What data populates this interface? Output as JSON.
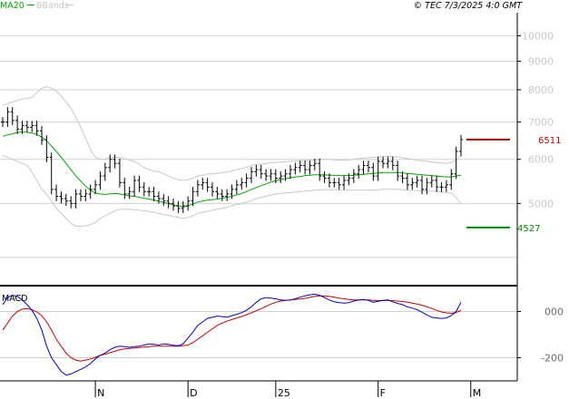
{
  "header": {
    "legend": [
      {
        "label": "MA20",
        "color": "#00aa00"
      },
      {
        "label": "BBands",
        "color": "#c8c8c8"
      }
    ],
    "copyright": "© TEC 7/3/2025 4:0 GMT"
  },
  "chart_data": [
    {
      "type": "line",
      "panel": "price",
      "x_ticks": [
        {
          "label": "N",
          "index": 19
        },
        {
          "label": "D",
          "index": 38
        },
        {
          "label": "25",
          "index": 56
        },
        {
          "label": "F",
          "index": 77
        },
        {
          "label": "M",
          "index": 96
        }
      ],
      "y_ticks": [
        "10000",
        "9000",
        "8000",
        "7000",
        "6000",
        "5000"
      ],
      "ylim": [
        3600,
        11000
      ],
      "scale": "log",
      "y_grid": [
        4000,
        5000,
        6000,
        7000,
        8000,
        9000,
        10000
      ],
      "levels": [
        {
          "value": 6511,
          "label": "6511",
          "color": "#cc0000"
        },
        {
          "value": 4527,
          "label": "4527",
          "color": "#008800"
        }
      ],
      "series": [
        {
          "name": "MA20",
          "color": "#00aa00"
        },
        {
          "name": "BBands",
          "color": "#c8c8c8"
        }
      ],
      "closes": [
        7000,
        7300,
        7050,
        6800,
        6900,
        6850,
        6900,
        6750,
        6500,
        6050,
        5300,
        5150,
        5100,
        5050,
        5000,
        5200,
        5150,
        5200,
        5300,
        5400,
        5600,
        5800,
        6000,
        5900,
        5450,
        5200,
        5250,
        5500,
        5350,
        5250,
        5250,
        5150,
        5100,
        5050,
        5000,
        4950,
        4900,
        4950,
        5050,
        5250,
        5400,
        5450,
        5350,
        5250,
        5200,
        5150,
        5200,
        5300,
        5400,
        5450,
        5550,
        5700,
        5750,
        5650,
        5600,
        5650,
        5550,
        5600,
        5650,
        5750,
        5800,
        5850,
        5750,
        5850,
        5900,
        5600,
        5550,
        5450,
        5450,
        5400,
        5500,
        5550,
        5650,
        5750,
        5850,
        5800,
        5600,
        5950,
        5900,
        5950,
        5850,
        5600,
        5550,
        5400,
        5450,
        5500,
        5300,
        5450,
        5500,
        5350,
        5350,
        5400,
        5650,
        6200,
        6511
      ],
      "ma20": [
        6600,
        6640,
        6670,
        6700,
        6720,
        6710,
        6690,
        6650,
        6580,
        6480,
        6340,
        6200,
        6050,
        5900,
        5750,
        5600,
        5480,
        5370,
        5280,
        5220,
        5200,
        5190,
        5200,
        5210,
        5200,
        5180,
        5160,
        5150,
        5130,
        5110,
        5090,
        5070,
        5050,
        5020,
        5000,
        4970,
        4950,
        4930,
        4950,
        4990,
        5030,
        5050,
        5070,
        5080,
        5090,
        5110,
        5130,
        5150,
        5180,
        5210,
        5250,
        5300,
        5340,
        5380,
        5420,
        5460,
        5490,
        5520,
        5540,
        5560,
        5580,
        5590,
        5610,
        5620,
        5630,
        5630,
        5630,
        5620,
        5620,
        5610,
        5610,
        5610,
        5620,
        5630,
        5640,
        5650,
        5660,
        5670,
        5680,
        5680,
        5680,
        5680,
        5670,
        5660,
        5650,
        5640,
        5630,
        5620,
        5610,
        5600,
        5590,
        5580,
        5580,
        5600,
        5620
      ],
      "bb_upper": [
        7500,
        7550,
        7600,
        7650,
        7700,
        7720,
        7750,
        7900,
        8050,
        8100,
        8050,
        7950,
        7800,
        7600,
        7400,
        7150,
        6850,
        6550,
        6250,
        6050,
        6000,
        6000,
        6050,
        6050,
        6050,
        6020,
        5980,
        5950,
        5880,
        5800,
        5750,
        5720,
        5700,
        5650,
        5600,
        5550,
        5520,
        5500,
        5520,
        5550,
        5600,
        5620,
        5650,
        5650,
        5660,
        5680,
        5700,
        5720,
        5750,
        5780,
        5800,
        5850,
        5870,
        5880,
        5900,
        5920,
        5920,
        5930,
        5940,
        5950,
        5960,
        5970,
        5970,
        5980,
        5990,
        6000,
        6000,
        6000,
        5990,
        5980,
        5980,
        5990,
        6000,
        6020,
        6030,
        6040,
        6050,
        6060,
        6070,
        6070,
        6070,
        6060,
        6040,
        6020,
        6000,
        5980,
        5960,
        5950,
        5930,
        5920,
        5910,
        5900,
        5920,
        5980,
        6100
      ],
      "bb_lower": [
        6100,
        6050,
        6000,
        5950,
        5900,
        5850,
        5700,
        5500,
        5300,
        5200,
        5050,
        4900,
        4800,
        4700,
        4600,
        4550,
        4550,
        4560,
        4580,
        4620,
        4700,
        4750,
        4800,
        4850,
        4880,
        4880,
        4880,
        4870,
        4860,
        4850,
        4840,
        4820,
        4800,
        4780,
        4760,
        4740,
        4720,
        4700,
        4720,
        4750,
        4800,
        4820,
        4840,
        4860,
        4880,
        4900,
        4920,
        4950,
        4980,
        5000,
        5030,
        5060,
        5100,
        5130,
        5150,
        5180,
        5200,
        5210,
        5220,
        5230,
        5240,
        5250,
        5260,
        5270,
        5280,
        5290,
        5290,
        5290,
        5290,
        5280,
        5280,
        5280,
        5280,
        5280,
        5280,
        5280,
        5280,
        5290,
        5300,
        5300,
        5300,
        5300,
        5290,
        5280,
        5280,
        5270,
        5270,
        5260,
        5260,
        5250,
        5240,
        5230,
        5220,
        5120,
        5000
      ]
    },
    {
      "type": "line",
      "panel": "macd",
      "title": "MACD",
      "y_ticks": [
        "000",
        "-200"
      ],
      "ylim": [
        -300,
        100
      ],
      "series": [
        {
          "name": "MACD",
          "color": "#0000cc"
        },
        {
          "name": "Signal",
          "color": "#cc0000"
        }
      ],
      "macd": [
        30,
        60,
        70,
        65,
        50,
        30,
        5,
        -30,
        -80,
        -150,
        -200,
        -230,
        -260,
        -275,
        -270,
        -260,
        -250,
        -240,
        -225,
        -205,
        -190,
        -180,
        -165,
        -155,
        -150,
        -152,
        -155,
        -152,
        -150,
        -145,
        -140,
        -142,
        -145,
        -140,
        -142,
        -146,
        -148,
        -140,
        -115,
        -90,
        -60,
        -45,
        -30,
        -25,
        -20,
        -22,
        -25,
        -18,
        -12,
        -5,
        5,
        20,
        40,
        55,
        60,
        58,
        55,
        50,
        48,
        50,
        55,
        62,
        68,
        72,
        75,
        70,
        60,
        50,
        42,
        38,
        36,
        38,
        45,
        50,
        52,
        48,
        40,
        44,
        48,
        50,
        42,
        35,
        30,
        20,
        15,
        8,
        -3,
        -15,
        -25,
        -28,
        -30,
        -28,
        -18,
        0,
        40
      ],
      "signal": [
        -80,
        -50,
        -20,
        0,
        10,
        12,
        8,
        -2,
        -18,
        -45,
        -80,
        -120,
        -150,
        -180,
        -200,
        -210,
        -215,
        -210,
        -205,
        -198,
        -190,
        -185,
        -178,
        -172,
        -165,
        -162,
        -160,
        -158,
        -156,
        -154,
        -152,
        -150,
        -150,
        -150,
        -150,
        -150,
        -150,
        -148,
        -145,
        -135,
        -120,
        -105,
        -90,
        -75,
        -60,
        -50,
        -42,
        -35,
        -28,
        -22,
        -14,
        -6,
        3,
        12,
        22,
        32,
        40,
        45,
        48,
        50,
        52,
        54,
        57,
        61,
        65,
        68,
        67,
        65,
        62,
        58,
        55,
        52,
        50,
        50,
        50,
        50,
        48,
        47,
        47,
        48,
        47,
        45,
        43,
        40,
        36,
        32,
        27,
        20,
        13,
        5,
        -2,
        -6,
        -8,
        -4,
        4
      ]
    }
  ]
}
